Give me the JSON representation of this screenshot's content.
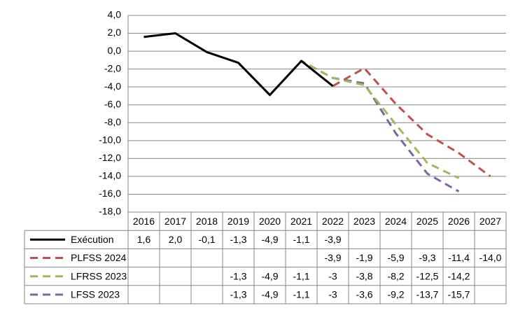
{
  "chart_data": {
    "type": "line",
    "categories": [
      "2016",
      "2017",
      "2018",
      "2019",
      "2020",
      "2021",
      "2022",
      "2023",
      "2024",
      "2025",
      "2026",
      "2027"
    ],
    "ylim": [
      -18,
      4
    ],
    "yticks": [
      {
        "value": 4,
        "label": "4,0"
      },
      {
        "value": 2,
        "label": "2,0"
      },
      {
        "value": 0,
        "label": "0,0"
      },
      {
        "value": -2,
        "label": "-2,0"
      },
      {
        "value": -4,
        "label": "-4,0"
      },
      {
        "value": -6,
        "label": "-6,0"
      },
      {
        "value": -8,
        "label": "-8,0"
      },
      {
        "value": -10,
        "label": "-10,0"
      },
      {
        "value": -12,
        "label": "-12,0"
      },
      {
        "value": -14,
        "label": "-14,0"
      },
      {
        "value": -16,
        "label": "-16,0"
      },
      {
        "value": -18,
        "label": "-18,0"
      }
    ],
    "grid": true,
    "series": [
      {
        "name": "Exécution",
        "color": "#000000",
        "dashed": false,
        "values": [
          1.6,
          2.0,
          -0.1,
          -1.3,
          -4.9,
          -1.1,
          -3.9,
          null,
          null,
          null,
          null,
          null
        ],
        "value_labels": [
          "1,6",
          "2,0",
          "-0,1",
          "-1,3",
          "-4,9",
          "-1,1",
          "-3,9",
          null,
          null,
          null,
          null,
          null
        ]
      },
      {
        "name": "PLFSS 2024",
        "color": "#c0504d",
        "dashed": true,
        "values": [
          null,
          null,
          null,
          null,
          null,
          null,
          -3.9,
          -1.9,
          -5.9,
          -9.3,
          -11.4,
          -14.0
        ],
        "value_labels": [
          null,
          null,
          null,
          null,
          null,
          null,
          "-3,9",
          "-1,9",
          "-5,9",
          "-9,3",
          "-11,4",
          "-14,0"
        ]
      },
      {
        "name": "LFRSS 2023",
        "color": "#9bbb59",
        "dashed": true,
        "values": [
          null,
          null,
          null,
          -1.3,
          -4.9,
          -1.1,
          -3,
          -3.8,
          -8.2,
          -12.5,
          -14.2,
          null
        ],
        "value_labels": [
          null,
          null,
          null,
          "-1,3",
          "-4,9",
          "-1,1",
          "-3",
          "-3,8",
          "-8,2",
          "-12,5",
          "-14,2",
          null
        ]
      },
      {
        "name": "LFSS 2023",
        "color": "#8064a2",
        "dashed": true,
        "values": [
          null,
          null,
          null,
          -1.3,
          -4.9,
          -1.1,
          -3,
          -3.6,
          -9.2,
          -13.7,
          -15.7,
          null
        ],
        "value_labels": [
          null,
          null,
          null,
          "-1,3",
          "-4,9",
          "-1,1",
          "-3",
          "-3,6",
          "-9,2",
          "-13,7",
          "-15,7",
          null
        ]
      }
    ]
  }
}
